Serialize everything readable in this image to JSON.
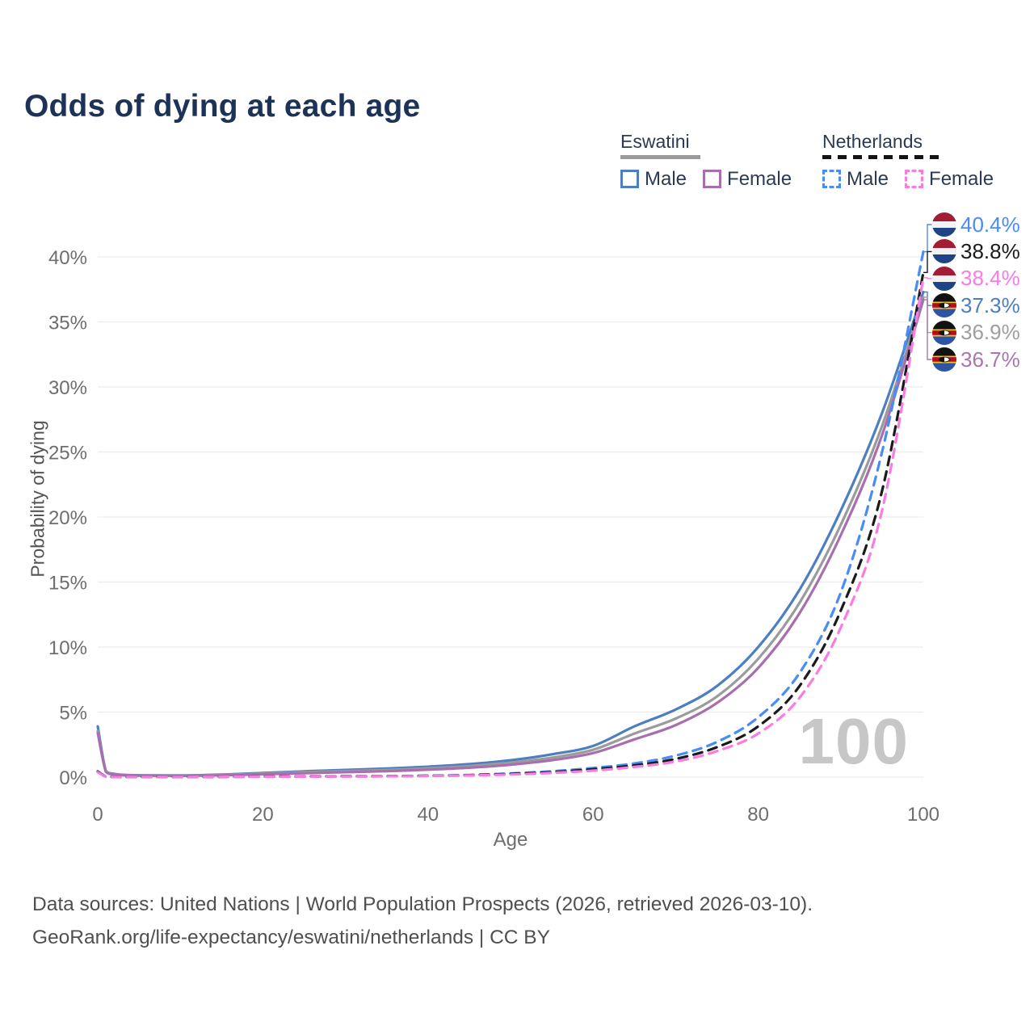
{
  "title": "Odds of dying at each age",
  "watermark": "100",
  "legend": {
    "groups": [
      {
        "label": "Eswatini",
        "line_style": "solid",
        "line_color": "#9a9a9a",
        "items": [
          {
            "label": "Male",
            "color": "#4d7ec0"
          },
          {
            "label": "Female",
            "color": "#a76fae"
          }
        ]
      },
      {
        "label": "Netherlands",
        "line_style": "dashed",
        "line_color": "#141414",
        "items": [
          {
            "label": "Male",
            "color": "#4a8cf7"
          },
          {
            "label": "Female",
            "color": "#f97ce0"
          }
        ]
      }
    ]
  },
  "axes": {
    "x_label": "Age",
    "y_label": "Probability of dying"
  },
  "chart_data": {
    "type": "line",
    "title": "Odds of dying at each age",
    "xlabel": "Age",
    "ylabel": "Probability of dying",
    "unit": "%",
    "xlim": [
      0,
      100
    ],
    "ylim": [
      0,
      42
    ],
    "grid": "horizontal",
    "legend_position": "top-right",
    "x_ticks": {
      "values": [
        0,
        20,
        40,
        60,
        80,
        100
      ],
      "labels": [
        "0",
        "20",
        "40",
        "60",
        "80",
        "100"
      ]
    },
    "y_ticks": {
      "values": [
        0,
        5,
        10,
        15,
        20,
        25,
        30,
        35,
        40
      ],
      "labels": [
        "0%",
        "5%",
        "10%",
        "15%",
        "20%",
        "25%",
        "30%",
        "35%",
        "40%"
      ]
    },
    "ages": [
      0,
      1,
      2,
      3,
      5,
      10,
      15,
      20,
      25,
      30,
      35,
      40,
      45,
      50,
      55,
      60,
      65,
      70,
      75,
      80,
      85,
      90,
      95,
      100
    ],
    "series": [
      {
        "name": "Eswatini Male",
        "country": "eswatini",
        "sex": "male",
        "style": "solid",
        "color": "#4d7ec0",
        "values": [
          3.9,
          0.45,
          0.25,
          0.18,
          0.14,
          0.13,
          0.2,
          0.32,
          0.45,
          0.55,
          0.66,
          0.8,
          1.0,
          1.3,
          1.75,
          2.4,
          3.9,
          5.2,
          7.0,
          10.0,
          14.4,
          20.5,
          28.0,
          37.3
        ],
        "end_value_pct": 37.3
      },
      {
        "name": "Eswatini Both sexes",
        "country": "eswatini",
        "sex": "all",
        "style": "solid",
        "color": "#9b9b9b",
        "values": [
          3.55,
          0.42,
          0.22,
          0.16,
          0.12,
          0.11,
          0.17,
          0.27,
          0.38,
          0.46,
          0.55,
          0.68,
          0.85,
          1.12,
          1.5,
          2.1,
          3.35,
          4.5,
          6.2,
          9.1,
          13.4,
          19.4,
          27.0,
          36.9
        ],
        "end_value_pct": 36.9
      },
      {
        "name": "Eswatini Female",
        "country": "eswatini",
        "sex": "female",
        "style": "solid",
        "color": "#a76fae",
        "values": [
          3.4,
          0.4,
          0.2,
          0.15,
          0.11,
          0.1,
          0.14,
          0.22,
          0.3,
          0.38,
          0.46,
          0.57,
          0.72,
          0.95,
          1.3,
          1.85,
          2.9,
          4.0,
          5.7,
          8.4,
          12.6,
          18.6,
          26.3,
          36.7
        ],
        "end_value_pct": 36.7
      },
      {
        "name": "Netherlands Male",
        "country": "netherlands",
        "sex": "male",
        "style": "dashed",
        "color": "#4a8cf7",
        "values": [
          0.45,
          0.04,
          0.02,
          0.02,
          0.015,
          0.01,
          0.03,
          0.05,
          0.06,
          0.07,
          0.08,
          0.11,
          0.17,
          0.28,
          0.45,
          0.7,
          1.05,
          1.65,
          2.7,
          4.6,
          8.0,
          14.2,
          25.0,
          40.4
        ],
        "end_value_pct": 40.4
      },
      {
        "name": "Netherlands Both sexes",
        "country": "netherlands",
        "sex": "all",
        "style": "dashed",
        "color": "#1a1a1a",
        "values": [
          0.42,
          0.035,
          0.02,
          0.015,
          0.012,
          0.01,
          0.02,
          0.04,
          0.05,
          0.06,
          0.07,
          0.1,
          0.15,
          0.24,
          0.38,
          0.6,
          0.9,
          1.4,
          2.3,
          3.9,
          7.0,
          12.8,
          22.0,
          38.8
        ],
        "end_value_pct": 38.8
      },
      {
        "name": "Netherlands Female",
        "country": "netherlands",
        "sex": "female",
        "style": "dashed",
        "color": "#f97ce0",
        "values": [
          0.38,
          0.03,
          0.015,
          0.012,
          0.01,
          0.01,
          0.02,
          0.03,
          0.04,
          0.05,
          0.06,
          0.09,
          0.13,
          0.2,
          0.32,
          0.5,
          0.78,
          1.2,
          2.0,
          3.35,
          6.1,
          11.5,
          20.5,
          38.4
        ],
        "end_value_pct": 38.4
      }
    ]
  },
  "end_labels": [
    {
      "text": "40.4%",
      "value": 40.4,
      "flag": "netherlands",
      "color": "#4a8cf7"
    },
    {
      "text": "38.8%",
      "value": 38.8,
      "flag": "netherlands",
      "color": "#1a1a1a"
    },
    {
      "text": "38.4%",
      "value": 38.4,
      "flag": "netherlands",
      "color": "#f97ce0"
    },
    {
      "text": "37.3%",
      "value": 37.3,
      "flag": "eswatini",
      "color": "#4d7ec0"
    },
    {
      "text": "36.9%",
      "value": 36.9,
      "flag": "eswatini",
      "color": "#9e9e9e"
    },
    {
      "text": "36.7%",
      "value": 36.7,
      "flag": "eswatini",
      "color": "#a976ad"
    }
  ],
  "footer": {
    "line1": "Data sources: United Nations | World Population Prospects (2026, retrieved 2026-03-10).",
    "line2": "GeoRank.org/life-expectancy/eswatini/netherlands | CC BY"
  },
  "colors": {
    "title": "#1c3357",
    "legend_text": "#2b3a55",
    "axis_text": "#6e6e6e",
    "grid": "#ececec",
    "watermark": "#c7c7c7",
    "footer_text": "#4f4f4f"
  }
}
